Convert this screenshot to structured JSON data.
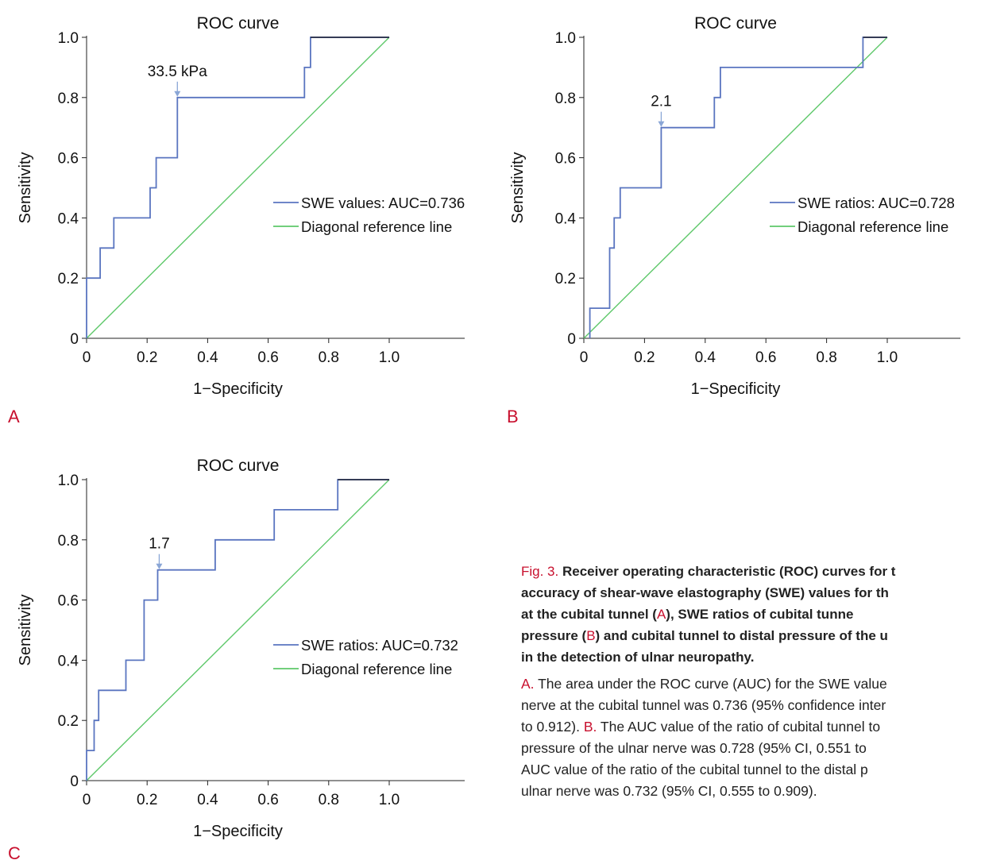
{
  "chart_data": [
    {
      "panel": "A",
      "type": "line",
      "title": "ROC curve",
      "xlabel": "1−Specificity",
      "ylabel": "Sensitivity",
      "xticks": [
        "0",
        "0.2",
        "0.4",
        "0.6",
        "0.8",
        "1.0"
      ],
      "yticks": [
        "0",
        "0.2",
        "0.4",
        "0.6",
        "0.8",
        "1.0"
      ],
      "xlim": [
        0,
        1
      ],
      "ylim": [
        0,
        1
      ],
      "grid": false,
      "legend_position": "center-right",
      "annotation": {
        "label": "33.5 kPa",
        "x": 0.3,
        "y": 0.8
      },
      "series": [
        {
          "name": "SWE values: AUC=0.736",
          "color": "#5a75c0",
          "x": [
            0,
            0,
            0.045,
            0.045,
            0.09,
            0.09,
            0.21,
            0.21,
            0.23,
            0.23,
            0.3,
            0.3,
            0.72,
            0.72,
            0.74,
            0.74,
            1.0
          ],
          "y": [
            0,
            0.2,
            0.2,
            0.3,
            0.3,
            0.4,
            0.4,
            0.5,
            0.5,
            0.6,
            0.6,
            0.8,
            0.8,
            0.9,
            0.9,
            1.0,
            1.0
          ]
        },
        {
          "name": "Diagonal reference line",
          "color": "#5ec86a",
          "x": [
            0,
            1
          ],
          "y": [
            0,
            1
          ]
        }
      ]
    },
    {
      "panel": "B",
      "type": "line",
      "title": "ROC curve",
      "xlabel": "1−Specificity",
      "ylabel": "Sensitivity",
      "xticks": [
        "0",
        "0.2",
        "0.4",
        "0.6",
        "0.8",
        "1.0"
      ],
      "yticks": [
        "0",
        "0.2",
        "0.4",
        "0.6",
        "0.8",
        "1.0"
      ],
      "xlim": [
        0,
        1
      ],
      "ylim": [
        0,
        1
      ],
      "grid": false,
      "legend_position": "center-right",
      "annotation": {
        "label": "2.1",
        "x": 0.255,
        "y": 0.7
      },
      "series": [
        {
          "name": "SWE ratios: AUC=0.728",
          "color": "#5a75c0",
          "x": [
            0.02,
            0.02,
            0.085,
            0.085,
            0.1,
            0.1,
            0.12,
            0.12,
            0.255,
            0.255,
            0.43,
            0.43,
            0.45,
            0.45,
            0.92,
            0.92,
            1.0
          ],
          "y": [
            0,
            0.1,
            0.1,
            0.3,
            0.3,
            0.4,
            0.4,
            0.5,
            0.5,
            0.7,
            0.7,
            0.8,
            0.8,
            0.9,
            0.9,
            1.0,
            1.0
          ]
        },
        {
          "name": "Diagonal reference line",
          "color": "#5ec86a",
          "x": [
            0,
            1
          ],
          "y": [
            0,
            1
          ]
        }
      ]
    },
    {
      "panel": "C",
      "type": "line",
      "title": "ROC curve",
      "xlabel": "1−Specificity",
      "ylabel": "Sensitivity",
      "xticks": [
        "0",
        "0.2",
        "0.4",
        "0.6",
        "0.8",
        "1.0"
      ],
      "yticks": [
        "0",
        "0.2",
        "0.4",
        "0.6",
        "0.8",
        "1.0"
      ],
      "xlim": [
        0,
        1
      ],
      "ylim": [
        0,
        1
      ],
      "grid": false,
      "legend_position": "center-right",
      "annotation": {
        "label": "1.7",
        "x": 0.24,
        "y": 0.7
      },
      "series": [
        {
          "name": "SWE ratios: AUC=0.732",
          "color": "#5a75c0",
          "x": [
            0,
            0,
            0.025,
            0.025,
            0.04,
            0.04,
            0.13,
            0.13,
            0.19,
            0.19,
            0.235,
            0.235,
            0.425,
            0.425,
            0.62,
            0.62,
            0.83,
            0.83,
            1.0
          ],
          "y": [
            0,
            0.1,
            0.1,
            0.2,
            0.2,
            0.3,
            0.3,
            0.4,
            0.4,
            0.6,
            0.6,
            0.7,
            0.7,
            0.8,
            0.8,
            0.9,
            0.9,
            1.0,
            1.0
          ]
        },
        {
          "name": "Diagonal reference line",
          "color": "#5ec86a",
          "x": [
            0,
            1
          ],
          "y": [
            0,
            1
          ]
        }
      ]
    }
  ],
  "panel_letters": {
    "a": "A",
    "b": "B",
    "c": "C"
  },
  "caption": {
    "heading_lines": [
      {
        "prefix": "Fig. 3.",
        "text": " Receiver operating characteristic (ROC) curves for t"
      },
      {
        "text": "accuracy of shear-wave elastography (SWE) values for th"
      },
      {
        "pre": "at the cubital tunnel (",
        "mark": "A",
        "post": "), SWE ratios of cubital tunne"
      },
      {
        "pre": "pressure (",
        "mark": "B",
        "post": ") and cubital tunnel to distal pressure of the u"
      },
      {
        "text": "in the detection of ulnar neuropathy."
      }
    ],
    "desc_lines": [
      {
        "mark": "A.",
        "post": " The area under the ROC curve (AUC) for the SWE value"
      },
      {
        "text": "nerve at the cubital tunnel was 0.736 (95% confidence inter"
      },
      {
        "pre": "to 0.912). ",
        "mark": "B.",
        "post": " The AUC value of the ratio of cubital tunnel to"
      },
      {
        "text": "pressure of the ulnar nerve was 0.728 (95% CI, 0.551 to"
      },
      {
        "text": "AUC value of the ratio of the cubital tunnel to the distal p"
      },
      {
        "text": "ulnar nerve was 0.732 (95% CI, 0.555 to 0.909)."
      }
    ]
  }
}
